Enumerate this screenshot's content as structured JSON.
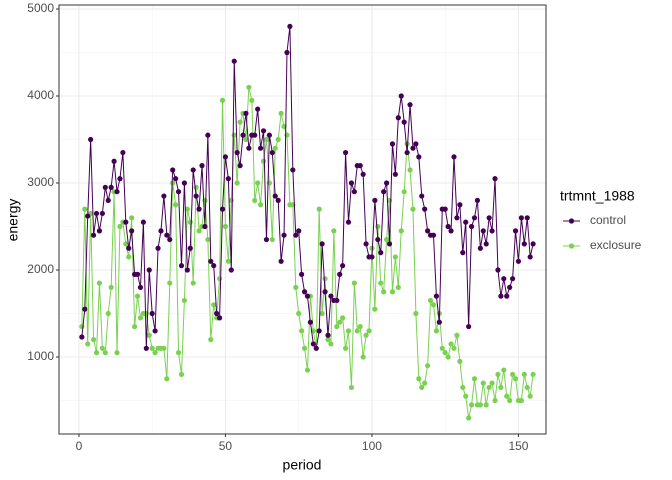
{
  "chart_data": {
    "type": "line",
    "x_label": "period",
    "y_label": "energy",
    "legend_title": "trtmnt_1988",
    "legend_position": "right",
    "grid": true,
    "xlim": [
      -6.8,
      159.4
    ],
    "ylim": [
      115,
      5046
    ],
    "xticks": [
      0,
      50,
      100,
      150
    ],
    "yticks": [
      1000,
      2000,
      3000,
      4000,
      5000
    ],
    "x": [
      1,
      2,
      3,
      4,
      5,
      6,
      7,
      8,
      9,
      10,
      11,
      12,
      13,
      14,
      15,
      16,
      17,
      18,
      19,
      20,
      21,
      22,
      23,
      24,
      25,
      26,
      27,
      28,
      29,
      30,
      31,
      32,
      33,
      34,
      35,
      36,
      37,
      38,
      39,
      40,
      41,
      42,
      43,
      44,
      45,
      46,
      47,
      48,
      49,
      50,
      51,
      52,
      53,
      54,
      55,
      56,
      57,
      58,
      59,
      60,
      61,
      62,
      63,
      64,
      65,
      66,
      67,
      68,
      69,
      70,
      71,
      72,
      73,
      74,
      75,
      76,
      77,
      78,
      79,
      80,
      81,
      82,
      83,
      84,
      85,
      86,
      87,
      88,
      89,
      90,
      91,
      92,
      93,
      94,
      95,
      96,
      97,
      98,
      99,
      100,
      101,
      102,
      103,
      104,
      105,
      106,
      107,
      108,
      109,
      110,
      111,
      112,
      113,
      114,
      115,
      116,
      117,
      118,
      119,
      120,
      121,
      122,
      123,
      124,
      125,
      126,
      127,
      128,
      129,
      130,
      131,
      132,
      133,
      134,
      135,
      136,
      137,
      138,
      139,
      140,
      141,
      142,
      143,
      144,
      145,
      146,
      147,
      148,
      149,
      150,
      151,
      152,
      153,
      154,
      155
    ],
    "series": [
      {
        "name": "control",
        "color": "#440154",
        "values": [
          1230,
          1550,
          2620,
          3500,
          2400,
          2650,
          2450,
          2650,
          2950,
          2800,
          2950,
          3250,
          2900,
          3050,
          3350,
          2550,
          2250,
          2450,
          1950,
          1950,
          1800,
          2550,
          1100,
          2000,
          1500,
          1300,
          2250,
          2450,
          2850,
          2400,
          2350,
          3150,
          3050,
          2900,
          2050,
          3000,
          2000,
          2250,
          3150,
          2850,
          2700,
          3200,
          2500,
          3550,
          2100,
          2050,
          1500,
          1450,
          2700,
          3300,
          3050,
          2000,
          4400,
          3350,
          3200,
          3550,
          3800,
          3400,
          3550,
          3550,
          3850,
          3400,
          3600,
          2350,
          3550,
          3350,
          2850,
          2800,
          2100,
          2400,
          4500,
          4800,
          3150,
          2400,
          2450,
          1950,
          1750,
          1700,
          1400,
          1150,
          1100,
          1300,
          2300,
          1750,
          1250,
          1700,
          1650,
          1650,
          1950,
          2050,
          3350,
          2550,
          3000,
          2900,
          3200,
          3200,
          3100,
          2300,
          2150,
          2150,
          2800,
          2350,
          2200,
          2900,
          3000,
          2300,
          3450,
          3100,
          3750,
          4000,
          3700,
          3350,
          3900,
          3400,
          3450,
          3300,
          2850,
          2700,
          2450,
          2400,
          2400,
          1700,
          1400,
          2700,
          2700,
          2500,
          2450,
          3300,
          2600,
          2750,
          2200,
          2550,
          1350,
          2500,
          2600,
          2800,
          2250,
          2450,
          2300,
          2600,
          2450,
          3050,
          2000,
          1700,
          1900,
          1700,
          1800,
          1900,
          2450,
          2100,
          2600,
          2300,
          2600,
          2150,
          2300
        ]
      },
      {
        "name": "exclosure",
        "color": "#7AD151",
        "values": [
          1350,
          2700,
          1150,
          2650,
          1200,
          1050,
          1850,
          1100,
          1050,
          1500,
          1800,
          2900,
          1050,
          2500,
          2550,
          2300,
          2150,
          2600,
          1350,
          1700,
          1450,
          1500,
          1500,
          1250,
          1100,
          1050,
          1100,
          1100,
          1100,
          750,
          1850,
          3000,
          2750,
          1050,
          800,
          1650,
          2700,
          2550,
          1850,
          2950,
          2450,
          2500,
          2800,
          2350,
          1200,
          1600,
          1450,
          1900,
          3950,
          2500,
          2100,
          2800,
          3550,
          3000,
          3700,
          3800,
          3500,
          4100,
          3950,
          2800,
          3000,
          2750,
          3250,
          3500,
          3000,
          2350,
          3400,
          3500,
          3800,
          3650,
          3550,
          2750,
          2750,
          1800,
          1500,
          1300,
          1100,
          850,
          1700,
          1300,
          1100,
          2700,
          1500,
          1900,
          1200,
          1150,
          2450,
          1350,
          1400,
          1450,
          1100,
          1300,
          650,
          1850,
          1300,
          1350,
          1000,
          1250,
          1300,
          2250,
          1550,
          2500,
          1850,
          1750,
          2350,
          2800,
          1750,
          2150,
          1800,
          2450,
          2900,
          3450,
          3150,
          2700,
          1500,
          750,
          650,
          700,
          900,
          1650,
          1600,
          1300,
          1500,
          1100,
          1050,
          1000,
          1150,
          1100,
          1250,
          950,
          650,
          550,
          300,
          450,
          750,
          450,
          450,
          700,
          450,
          650,
          700,
          500,
          800,
          650,
          850,
          550,
          500,
          800,
          750,
          500,
          500,
          800,
          650,
          550,
          800
        ]
      }
    ]
  }
}
